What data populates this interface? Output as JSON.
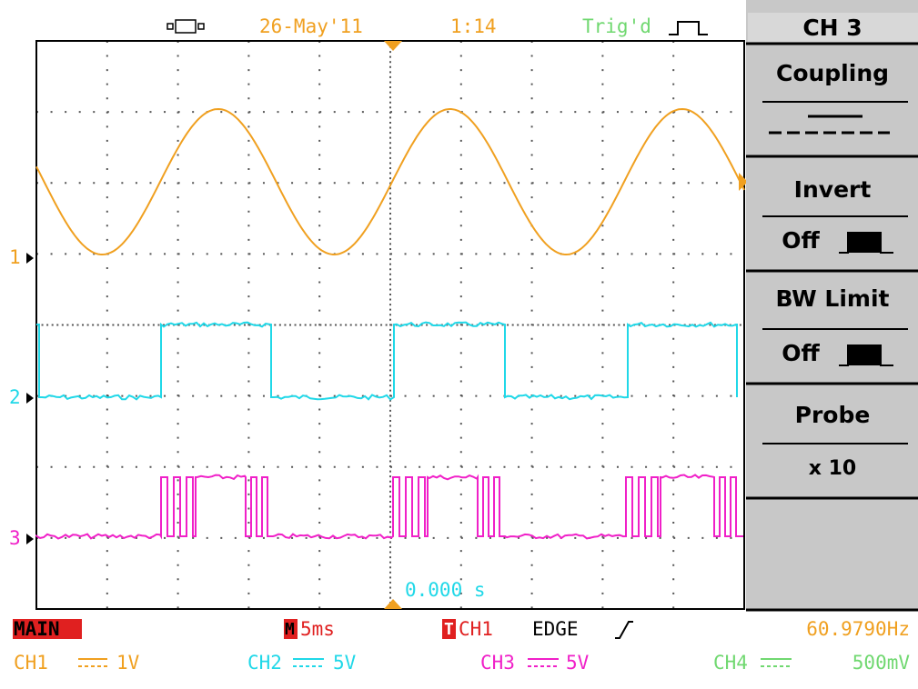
{
  "status_bar": {
    "date": "26-May'11",
    "time": "1:14",
    "trigger_status": "Trig'd"
  },
  "menu": {
    "title": "CH 3",
    "items": [
      {
        "label": "Coupling"
      },
      {
        "label": "Invert",
        "value": "Off"
      },
      {
        "label": "BW Limit",
        "value": "Off"
      },
      {
        "label": "Probe",
        "value": "x 10"
      }
    ]
  },
  "channel_markers": [
    "1",
    "2",
    "3"
  ],
  "time_offset": "0.000 s",
  "footer": {
    "mode": "MAIN",
    "timebase_prefix": "M",
    "timebase": "5ms",
    "trigger_prefix": "T",
    "trigger_source": "CH1",
    "trigger_type": "EDGE",
    "frequency": "60.9790Hz",
    "channels": [
      {
        "name": "CH1",
        "scale": "1V"
      },
      {
        "name": "CH2",
        "scale": "5V"
      },
      {
        "name": "CH3",
        "scale": "5V"
      },
      {
        "name": "CH4",
        "scale": "500mV"
      }
    ]
  }
}
